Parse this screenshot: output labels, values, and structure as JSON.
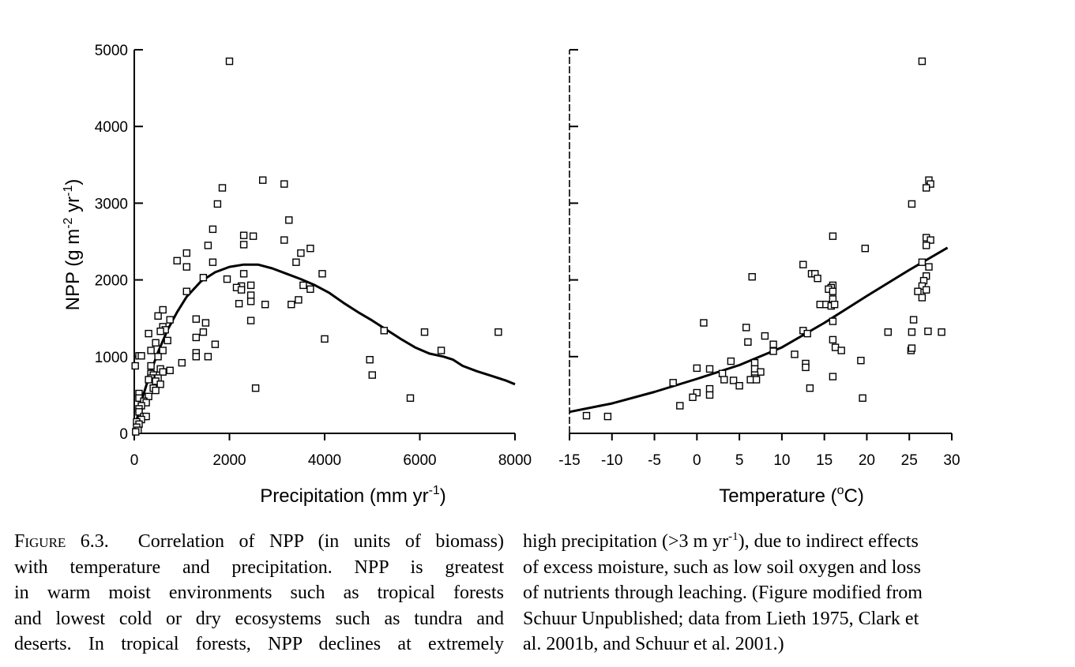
{
  "chart_data": [
    {
      "type": "scatter",
      "panel": "left",
      "xlabel": "Precipitation (mm  yr",
      "xlabel_sup": "-1",
      "xlabel_tail": ")",
      "ylabel": "NPP (g m",
      "ylabel_sup1": "-2",
      "ylabel_mid": " yr",
      "ylabel_sup2": "-1",
      "ylabel_tail": ")",
      "xlim": [
        0,
        8000
      ],
      "ylim": [
        0,
        5000
      ],
      "xticks": [
        0,
        2000,
        4000,
        6000,
        8000
      ],
      "xtick_labels": [
        "0",
        "2000",
        "4000",
        "6000",
        "8000"
      ],
      "yticks": [
        0,
        1000,
        2000,
        3000,
        4000,
        5000
      ],
      "ytick_labels": [
        "0",
        "1000",
        "2000",
        "3000",
        "4000",
        "5000"
      ],
      "points": [
        [
          2000,
          4850
        ],
        [
          2700,
          3300
        ],
        [
          3150,
          3250
        ],
        [
          1850,
          3200
        ],
        [
          1750,
          2990
        ],
        [
          3250,
          2780
        ],
        [
          1650,
          2660
        ],
        [
          2300,
          2580
        ],
        [
          2500,
          2570
        ],
        [
          3150,
          2520
        ],
        [
          1550,
          2450
        ],
        [
          2300,
          2460
        ],
        [
          3700,
          2410
        ],
        [
          1100,
          2350
        ],
        [
          3500,
          2350
        ],
        [
          1650,
          2230
        ],
        [
          3400,
          2230
        ],
        [
          900,
          2250
        ],
        [
          1100,
          2170
        ],
        [
          2300,
          2080
        ],
        [
          3950,
          2080
        ],
        [
          1950,
          2010
        ],
        [
          1450,
          2030
        ],
        [
          3550,
          1930
        ],
        [
          2250,
          1920
        ],
        [
          2450,
          1930
        ],
        [
          2150,
          1900
        ],
        [
          3700,
          1880
        ],
        [
          2250,
          1870
        ],
        [
          2450,
          1800
        ],
        [
          1100,
          1850
        ],
        [
          2450,
          1720
        ],
        [
          3450,
          1740
        ],
        [
          2750,
          1680
        ],
        [
          2200,
          1690
        ],
        [
          3300,
          1680
        ],
        [
          600,
          1610
        ],
        [
          500,
          1530
        ],
        [
          750,
          1480
        ],
        [
          1300,
          1490
        ],
        [
          2450,
          1470
        ],
        [
          1500,
          1440
        ],
        [
          600,
          1390
        ],
        [
          650,
          1350
        ],
        [
          550,
          1330
        ],
        [
          5250,
          1340
        ],
        [
          6100,
          1320
        ],
        [
          7650,
          1320
        ],
        [
          1450,
          1320
        ],
        [
          300,
          1300
        ],
        [
          1300,
          1250
        ],
        [
          4000,
          1230
        ],
        [
          700,
          1210
        ],
        [
          450,
          1180
        ],
        [
          1700,
          1160
        ],
        [
          350,
          1080
        ],
        [
          600,
          1080
        ],
        [
          1300,
          1050
        ],
        [
          6450,
          1080
        ],
        [
          100,
          1010
        ],
        [
          150,
          1010
        ],
        [
          500,
          1000
        ],
        [
          1300,
          1000
        ],
        [
          1550,
          1000
        ],
        [
          4950,
          960
        ],
        [
          1000,
          920
        ],
        [
          20,
          880
        ],
        [
          350,
          880
        ],
        [
          550,
          840
        ],
        [
          750,
          820
        ],
        [
          600,
          800
        ],
        [
          350,
          780
        ],
        [
          400,
          760
        ],
        [
          500,
          720
        ],
        [
          5000,
          760
        ],
        [
          350,
          720
        ],
        [
          300,
          700
        ],
        [
          450,
          680
        ],
        [
          550,
          640
        ],
        [
          400,
          590
        ],
        [
          450,
          560
        ],
        [
          2550,
          590
        ],
        [
          100,
          520
        ],
        [
          300,
          480
        ],
        [
          100,
          460
        ],
        [
          200,
          420
        ],
        [
          250,
          400
        ],
        [
          150,
          360
        ],
        [
          100,
          320
        ],
        [
          100,
          280
        ],
        [
          200,
          220
        ],
        [
          250,
          220
        ],
        [
          150,
          180
        ],
        [
          50,
          150
        ],
        [
          100,
          120
        ],
        [
          50,
          80
        ],
        [
          80,
          40
        ],
        [
          30,
          20
        ],
        [
          5800,
          460
        ]
      ],
      "curve": [
        [
          0,
          0
        ],
        [
          100,
          320
        ],
        [
          300,
          720
        ],
        [
          500,
          1060
        ],
        [
          700,
          1350
        ],
        [
          900,
          1580
        ],
        [
          1100,
          1780
        ],
        [
          1400,
          1980
        ],
        [
          1700,
          2100
        ],
        [
          2000,
          2170
        ],
        [
          2300,
          2200
        ],
        [
          2600,
          2200
        ],
        [
          2900,
          2150
        ],
        [
          3200,
          2080
        ],
        [
          3500,
          2010
        ],
        [
          3800,
          1930
        ],
        [
          4100,
          1830
        ],
        [
          4400,
          1700
        ],
        [
          4700,
          1580
        ],
        [
          5000,
          1470
        ],
        [
          5300,
          1350
        ],
        [
          5600,
          1230
        ],
        [
          5900,
          1120
        ],
        [
          6200,
          1040
        ],
        [
          6500,
          1000
        ],
        [
          6700,
          960
        ],
        [
          6900,
          880
        ],
        [
          7200,
          810
        ],
        [
          7500,
          750
        ],
        [
          7800,
          690
        ],
        [
          8000,
          640
        ]
      ]
    },
    {
      "type": "scatter",
      "panel": "right",
      "xlabel": "Temperature (",
      "xlabel_sup": "o",
      "xlabel_tail": "C)",
      "xlim": [
        -15,
        30
      ],
      "ylim": [
        0,
        5000
      ],
      "xticks": [
        -15,
        -10,
        -5,
        0,
        5,
        10,
        15,
        20,
        25,
        30
      ],
      "xtick_labels": [
        "-15",
        "-10",
        "-5",
        "0",
        "5",
        "10",
        "15",
        "20",
        "25",
        "30"
      ],
      "yticks": [
        0,
        1000,
        2000,
        3000,
        4000,
        5000
      ],
      "points": [
        [
          26.5,
          4850
        ],
        [
          27.3,
          3300
        ],
        [
          27.5,
          3250
        ],
        [
          27,
          3200
        ],
        [
          25.3,
          2990
        ],
        [
          16,
          2570
        ],
        [
          27,
          2550
        ],
        [
          27.5,
          2520
        ],
        [
          27,
          2450
        ],
        [
          19.8,
          2410
        ],
        [
          26.5,
          2230
        ],
        [
          27.3,
          2170
        ],
        [
          12.5,
          2200
        ],
        [
          13.5,
          2080
        ],
        [
          13.9,
          2080
        ],
        [
          14.2,
          2020
        ],
        [
          6.5,
          2040
        ],
        [
          27,
          2050
        ],
        [
          26.7,
          1990
        ],
        [
          16,
          1930
        ],
        [
          15.8,
          1900
        ],
        [
          26.5,
          1920
        ],
        [
          15.5,
          1880
        ],
        [
          16,
          1850
        ],
        [
          26,
          1850
        ],
        [
          27,
          1870
        ],
        [
          26.5,
          1770
        ],
        [
          16,
          1750
        ],
        [
          14.5,
          1680
        ],
        [
          15.2,
          1680
        ],
        [
          15.8,
          1660
        ],
        [
          16.2,
          1680
        ],
        [
          16,
          1460
        ],
        [
          25.5,
          1480
        ],
        [
          0.8,
          1440
        ],
        [
          5.8,
          1380
        ],
        [
          12.5,
          1340
        ],
        [
          13,
          1300
        ],
        [
          22.5,
          1320
        ],
        [
          25.3,
          1320
        ],
        [
          27.2,
          1330
        ],
        [
          28.8,
          1320
        ],
        [
          8,
          1270
        ],
        [
          16,
          1220
        ],
        [
          6,
          1190
        ],
        [
          9,
          1160
        ],
        [
          16.3,
          1120
        ],
        [
          17,
          1080
        ],
        [
          9,
          1070
        ],
        [
          25.2,
          1080
        ],
        [
          25.3,
          1110
        ],
        [
          11.5,
          1030
        ],
        [
          19.3,
          950
        ],
        [
          4,
          940
        ],
        [
          6.8,
          920
        ],
        [
          12.8,
          910
        ],
        [
          0,
          850
        ],
        [
          1.5,
          840
        ],
        [
          6.8,
          840
        ],
        [
          12.8,
          860
        ],
        [
          3,
          780
        ],
        [
          7.5,
          800
        ],
        [
          6.8,
          760
        ],
        [
          6.8,
          720
        ],
        [
          3.2,
          700
        ],
        [
          4.3,
          690
        ],
        [
          6.3,
          700
        ],
        [
          7,
          700
        ],
        [
          16,
          740
        ],
        [
          -2.8,
          660
        ],
        [
          5,
          620
        ],
        [
          1.5,
          580
        ],
        [
          13.3,
          590
        ],
        [
          0,
          530
        ],
        [
          -0.5,
          470
        ],
        [
          1.5,
          500
        ],
        [
          19.5,
          460
        ],
        [
          -2,
          360
        ],
        [
          -13,
          230
        ],
        [
          -10.5,
          220
        ]
      ],
      "curve": [
        [
          -15,
          280
        ],
        [
          -10,
          390
        ],
        [
          -5,
          540
        ],
        [
          0,
          710
        ],
        [
          5,
          890
        ],
        [
          10,
          1120
        ],
        [
          15,
          1440
        ],
        [
          20,
          1790
        ],
        [
          25,
          2130
        ],
        [
          29.5,
          2420
        ]
      ]
    }
  ],
  "caption": {
    "left_lines": [
      {
        "label": "Figure 6.3.",
        "text": "Correlation of NPP (in units of biomass)"
      },
      {
        "text": "with temperature and precipitation. NPP is greatest"
      },
      {
        "text": "in warm moist environments such as tropical forests"
      },
      {
        "text": "and lowest cold or dry ecosystems such as tundra and"
      },
      {
        "text": "deserts. In tropical forests, NPP declines at extremely"
      }
    ],
    "right_line1": {
      "before": "high precipitation (>3 m yr",
      "sup": "-1",
      "after": "), due to indirect effects"
    },
    "right_lines": [
      "of excess moisture, such as low soil oxygen and loss",
      "of nutrients through leaching. (Figure modified from",
      "Schuur Unpublished; data from Lieth 1975, Clark et",
      "al. 2001b, and Schuur et al. 2001.)"
    ]
  }
}
